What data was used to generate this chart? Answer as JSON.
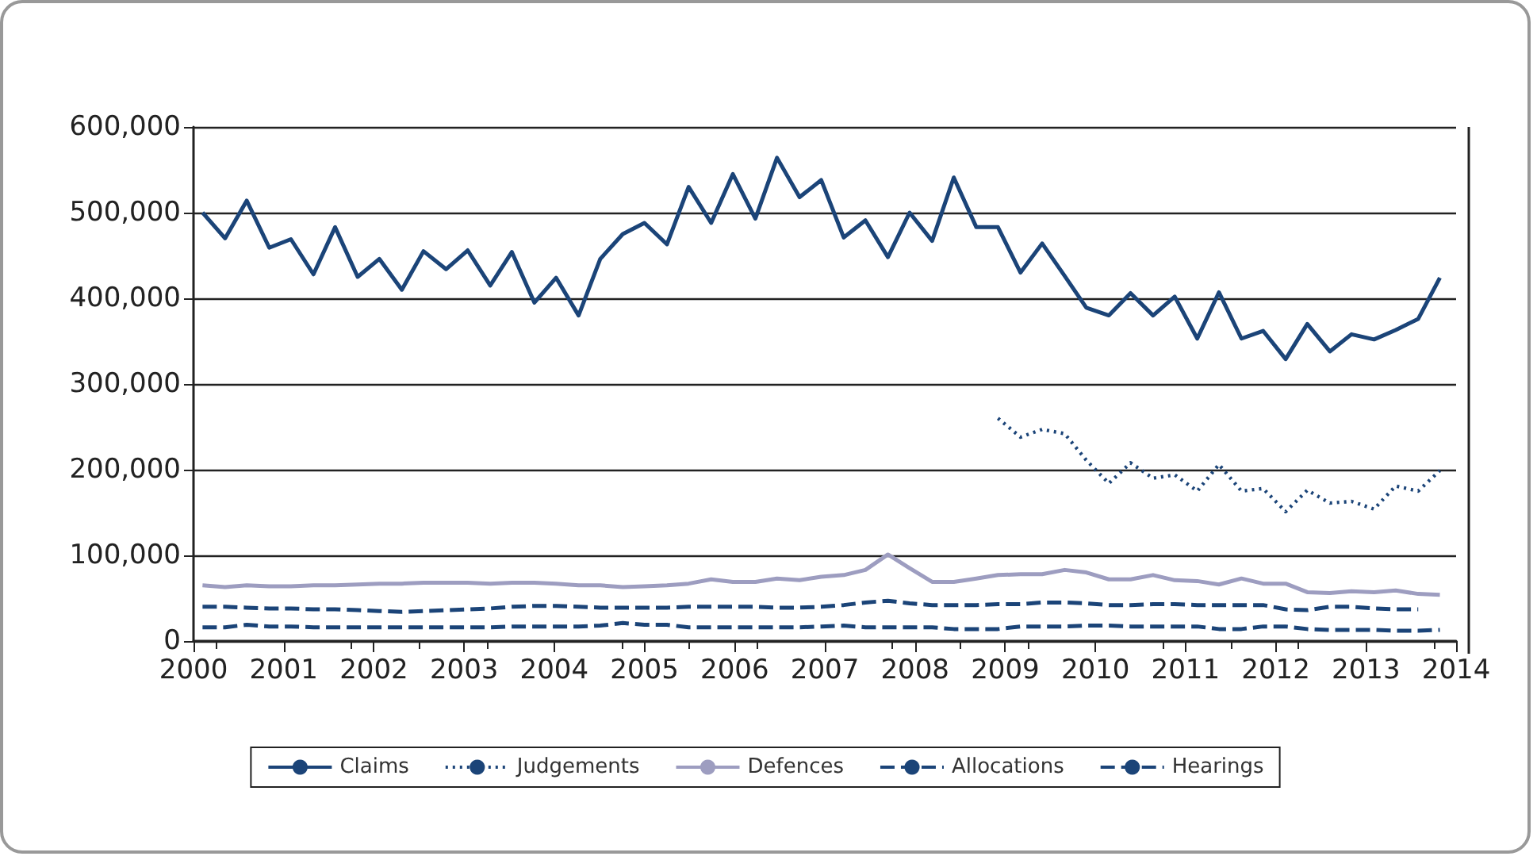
{
  "chart_data": {
    "type": "line",
    "x": [
      2000.1,
      2000.35,
      2000.59,
      2000.84,
      2001.08,
      2001.33,
      2001.57,
      2001.82,
      2002.06,
      2002.31,
      2002.55,
      2002.8,
      2003.04,
      2003.29,
      2003.53,
      2003.78,
      2004.02,
      2004.27,
      2004.51,
      2004.76,
      2005.0,
      2005.25,
      2005.49,
      2005.74,
      2005.98,
      2006.23,
      2006.47,
      2006.72,
      2006.96,
      2007.21,
      2007.45,
      2007.7,
      2007.94,
      2008.19,
      2008.43,
      2008.68,
      2008.92,
      2009.17,
      2009.41,
      2009.66,
      2009.9,
      2010.15,
      2010.39,
      2010.64,
      2010.88,
      2011.13,
      2011.37,
      2011.62,
      2011.86,
      2012.11,
      2012.35,
      2012.6,
      2012.84,
      2013.09,
      2013.33,
      2013.58,
      2013.82
    ],
    "series": [
      {
        "name": "Claims",
        "color": "#1b4478",
        "line_style": "solid",
        "values": [
          500000,
          470000,
          514000,
          459000,
          469000,
          428000,
          483000,
          425000,
          446000,
          410000,
          455000,
          434000,
          456000,
          415000,
          454000,
          395000,
          424000,
          380000,
          446000,
          475000,
          488000,
          463000,
          530000,
          488000,
          545000,
          493000,
          564000,
          518000,
          538000,
          471000,
          491000,
          448000,
          500000,
          467000,
          541000,
          483000,
          483000,
          430000,
          464000,
          426000,
          389000,
          380000,
          406000,
          380000,
          402000,
          353000,
          407000,
          353000,
          362000,
          329000,
          370000,
          338000,
          358000,
          352000,
          363000,
          376000,
          424000
        ]
      },
      {
        "name": "Judgements",
        "color": "#1b4478",
        "line_style": "dotted",
        "values": [
          null,
          null,
          null,
          null,
          null,
          null,
          null,
          null,
          null,
          null,
          null,
          null,
          null,
          null,
          null,
          null,
          null,
          null,
          null,
          null,
          null,
          null,
          null,
          null,
          null,
          null,
          null,
          null,
          null,
          null,
          null,
          null,
          null,
          null,
          null,
          null,
          260000,
          238000,
          247000,
          242000,
          211000,
          184000,
          208000,
          190000,
          194000,
          175000,
          206000,
          175000,
          178000,
          151000,
          176000,
          161000,
          163000,
          154000,
          181000,
          175000,
          199000
        ]
      },
      {
        "name": "Defences",
        "color": "#9d9dc0",
        "line_style": "solid",
        "values": [
          65000,
          63000,
          65000,
          64000,
          64000,
          65000,
          65000,
          66000,
          67000,
          67000,
          68000,
          68000,
          68000,
          67000,
          68000,
          68000,
          67000,
          65000,
          65000,
          63000,
          64000,
          65000,
          67000,
          72000,
          69000,
          69000,
          73000,
          71000,
          75000,
          77000,
          83000,
          101000,
          85000,
          69000,
          69000,
          73000,
          77000,
          78000,
          78000,
          83000,
          80000,
          72000,
          72000,
          77000,
          71000,
          70000,
          66000,
          73000,
          67000,
          67000,
          57000,
          56000,
          58000,
          57000,
          59000,
          55000,
          54000
        ]
      },
      {
        "name": "Allocations",
        "color": "#1b4478",
        "line_style": "dashed",
        "values": [
          40000,
          40000,
          39000,
          38000,
          38000,
          37000,
          37000,
          36000,
          35000,
          34000,
          35000,
          36000,
          37000,
          38000,
          40000,
          41000,
          41000,
          40000,
          39000,
          39000,
          39000,
          39000,
          40000,
          40000,
          40000,
          40000,
          39000,
          39000,
          40000,
          42000,
          45000,
          47000,
          44000,
          42000,
          42000,
          42000,
          43000,
          43000,
          45000,
          45000,
          44000,
          42000,
          42000,
          43000,
          43000,
          42000,
          42000,
          42000,
          42000,
          37000,
          36000,
          40000,
          40000,
          38000,
          37000,
          37000,
          null
        ]
      },
      {
        "name": "Hearings",
        "color": "#1b4478",
        "line_style": "dashed",
        "values": [
          16000,
          16000,
          19000,
          17000,
          17000,
          16000,
          16000,
          16000,
          16000,
          16000,
          16000,
          16000,
          16000,
          16000,
          17000,
          17000,
          17000,
          17000,
          18000,
          21000,
          19000,
          19000,
          16000,
          16000,
          16000,
          16000,
          16000,
          16000,
          17000,
          18000,
          16000,
          16000,
          16000,
          16000,
          14000,
          14000,
          14000,
          17000,
          17000,
          17000,
          18000,
          18000,
          17000,
          17000,
          17000,
          17000,
          14000,
          14000,
          17000,
          17000,
          14000,
          13000,
          13000,
          13000,
          12000,
          12000,
          13000
        ]
      }
    ],
    "xlim": [
      2000,
      2014
    ],
    "xticks": [
      2000,
      2001,
      2002,
      2003,
      2004,
      2005,
      2006,
      2007,
      2008,
      2009,
      2010,
      2011,
      2012,
      2013,
      2014
    ],
    "ylim": [
      0,
      600000
    ],
    "yticks": [
      {
        "value": 0,
        "label": "0"
      },
      {
        "value": 100000,
        "label": "100,000"
      },
      {
        "value": 200000,
        "label": "200,000"
      },
      {
        "value": 300000,
        "label": "300,000"
      },
      {
        "value": 400000,
        "label": "400,000"
      },
      {
        "value": 500000,
        "label": "500,000"
      },
      {
        "value": 600000,
        "label": "600,000"
      }
    ],
    "grid": "y",
    "legend": "bottom",
    "marker": "none"
  }
}
